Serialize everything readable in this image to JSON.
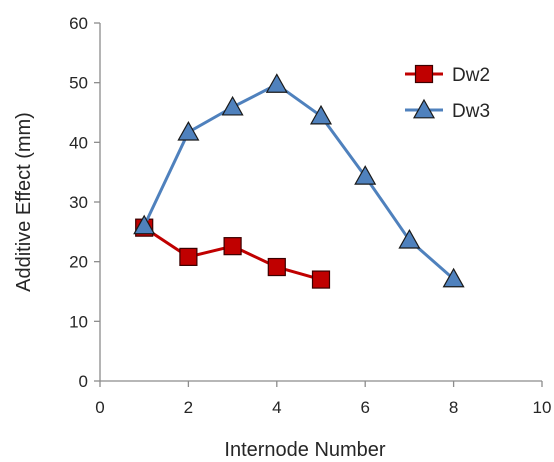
{
  "chart_data": {
    "type": "line",
    "title": "",
    "xlabel": "Internode Number",
    "ylabel": "Additive Effect (mm)",
    "xlim": [
      0,
      10
    ],
    "ylim": [
      0,
      60
    ],
    "xticks": [
      0,
      2,
      4,
      6,
      8,
      10
    ],
    "yticks": [
      0,
      10,
      20,
      30,
      40,
      50,
      60
    ],
    "grid": false,
    "legend_position": "top-right",
    "series": [
      {
        "name": "Dw2",
        "marker": "square",
        "line_color": "#C00000",
        "marker_fill": "#C00000",
        "marker_stroke": "#3b0000",
        "x": [
          1,
          2,
          3,
          4,
          5
        ],
        "y": [
          25.7,
          20.8,
          22.6,
          19.1,
          17.0
        ]
      },
      {
        "name": "Dw3",
        "marker": "triangle",
        "line_color": "#4F81BD",
        "marker_fill": "#4F81BD",
        "marker_stroke": "#1a1a1a",
        "x": [
          1,
          2,
          3,
          4,
          5,
          6,
          7,
          8
        ],
        "y": [
          26.0,
          41.7,
          45.9,
          49.7,
          44.4,
          34.3,
          23.6,
          17.1
        ]
      }
    ]
  }
}
